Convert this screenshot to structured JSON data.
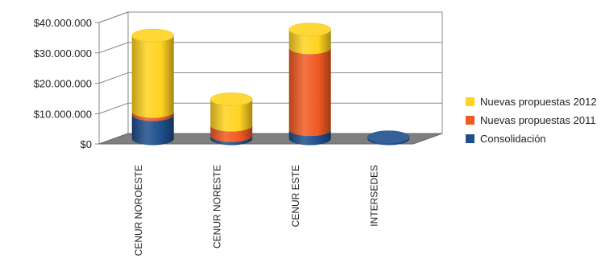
{
  "chart_data": {
    "type": "bar",
    "stacked": true,
    "style": "3d-cylinder",
    "categories": [
      "CENUR NOROESTE",
      "CENUR NORESTE",
      "CENUR ESTE",
      "INTERSEDES"
    ],
    "series": [
      {
        "name": "Consolidación",
        "values": [
          8000000,
          1000000,
          3000000,
          500000
        ],
        "color": "#1F4E8C"
      },
      {
        "name": "Nuevas propuestas 2011",
        "values": [
          1000000,
          3500000,
          27000000,
          0
        ],
        "color": "#F15A22"
      },
      {
        "name": "Nuevas propuestas 2012",
        "values": [
          25000000,
          8500000,
          6000000,
          0
        ],
        "color": "#FFD320"
      }
    ],
    "y_ticks": [
      "$0",
      "$10.000.000",
      "$20.000.000",
      "$30.000.000",
      "$40.000.000"
    ],
    "ylim": [
      0,
      40000000
    ],
    "grid": true,
    "legend_position": "right",
    "legend_order": [
      "Nuevas propuestas 2012",
      "Nuevas propuestas 2011",
      "Consolidación"
    ]
  }
}
